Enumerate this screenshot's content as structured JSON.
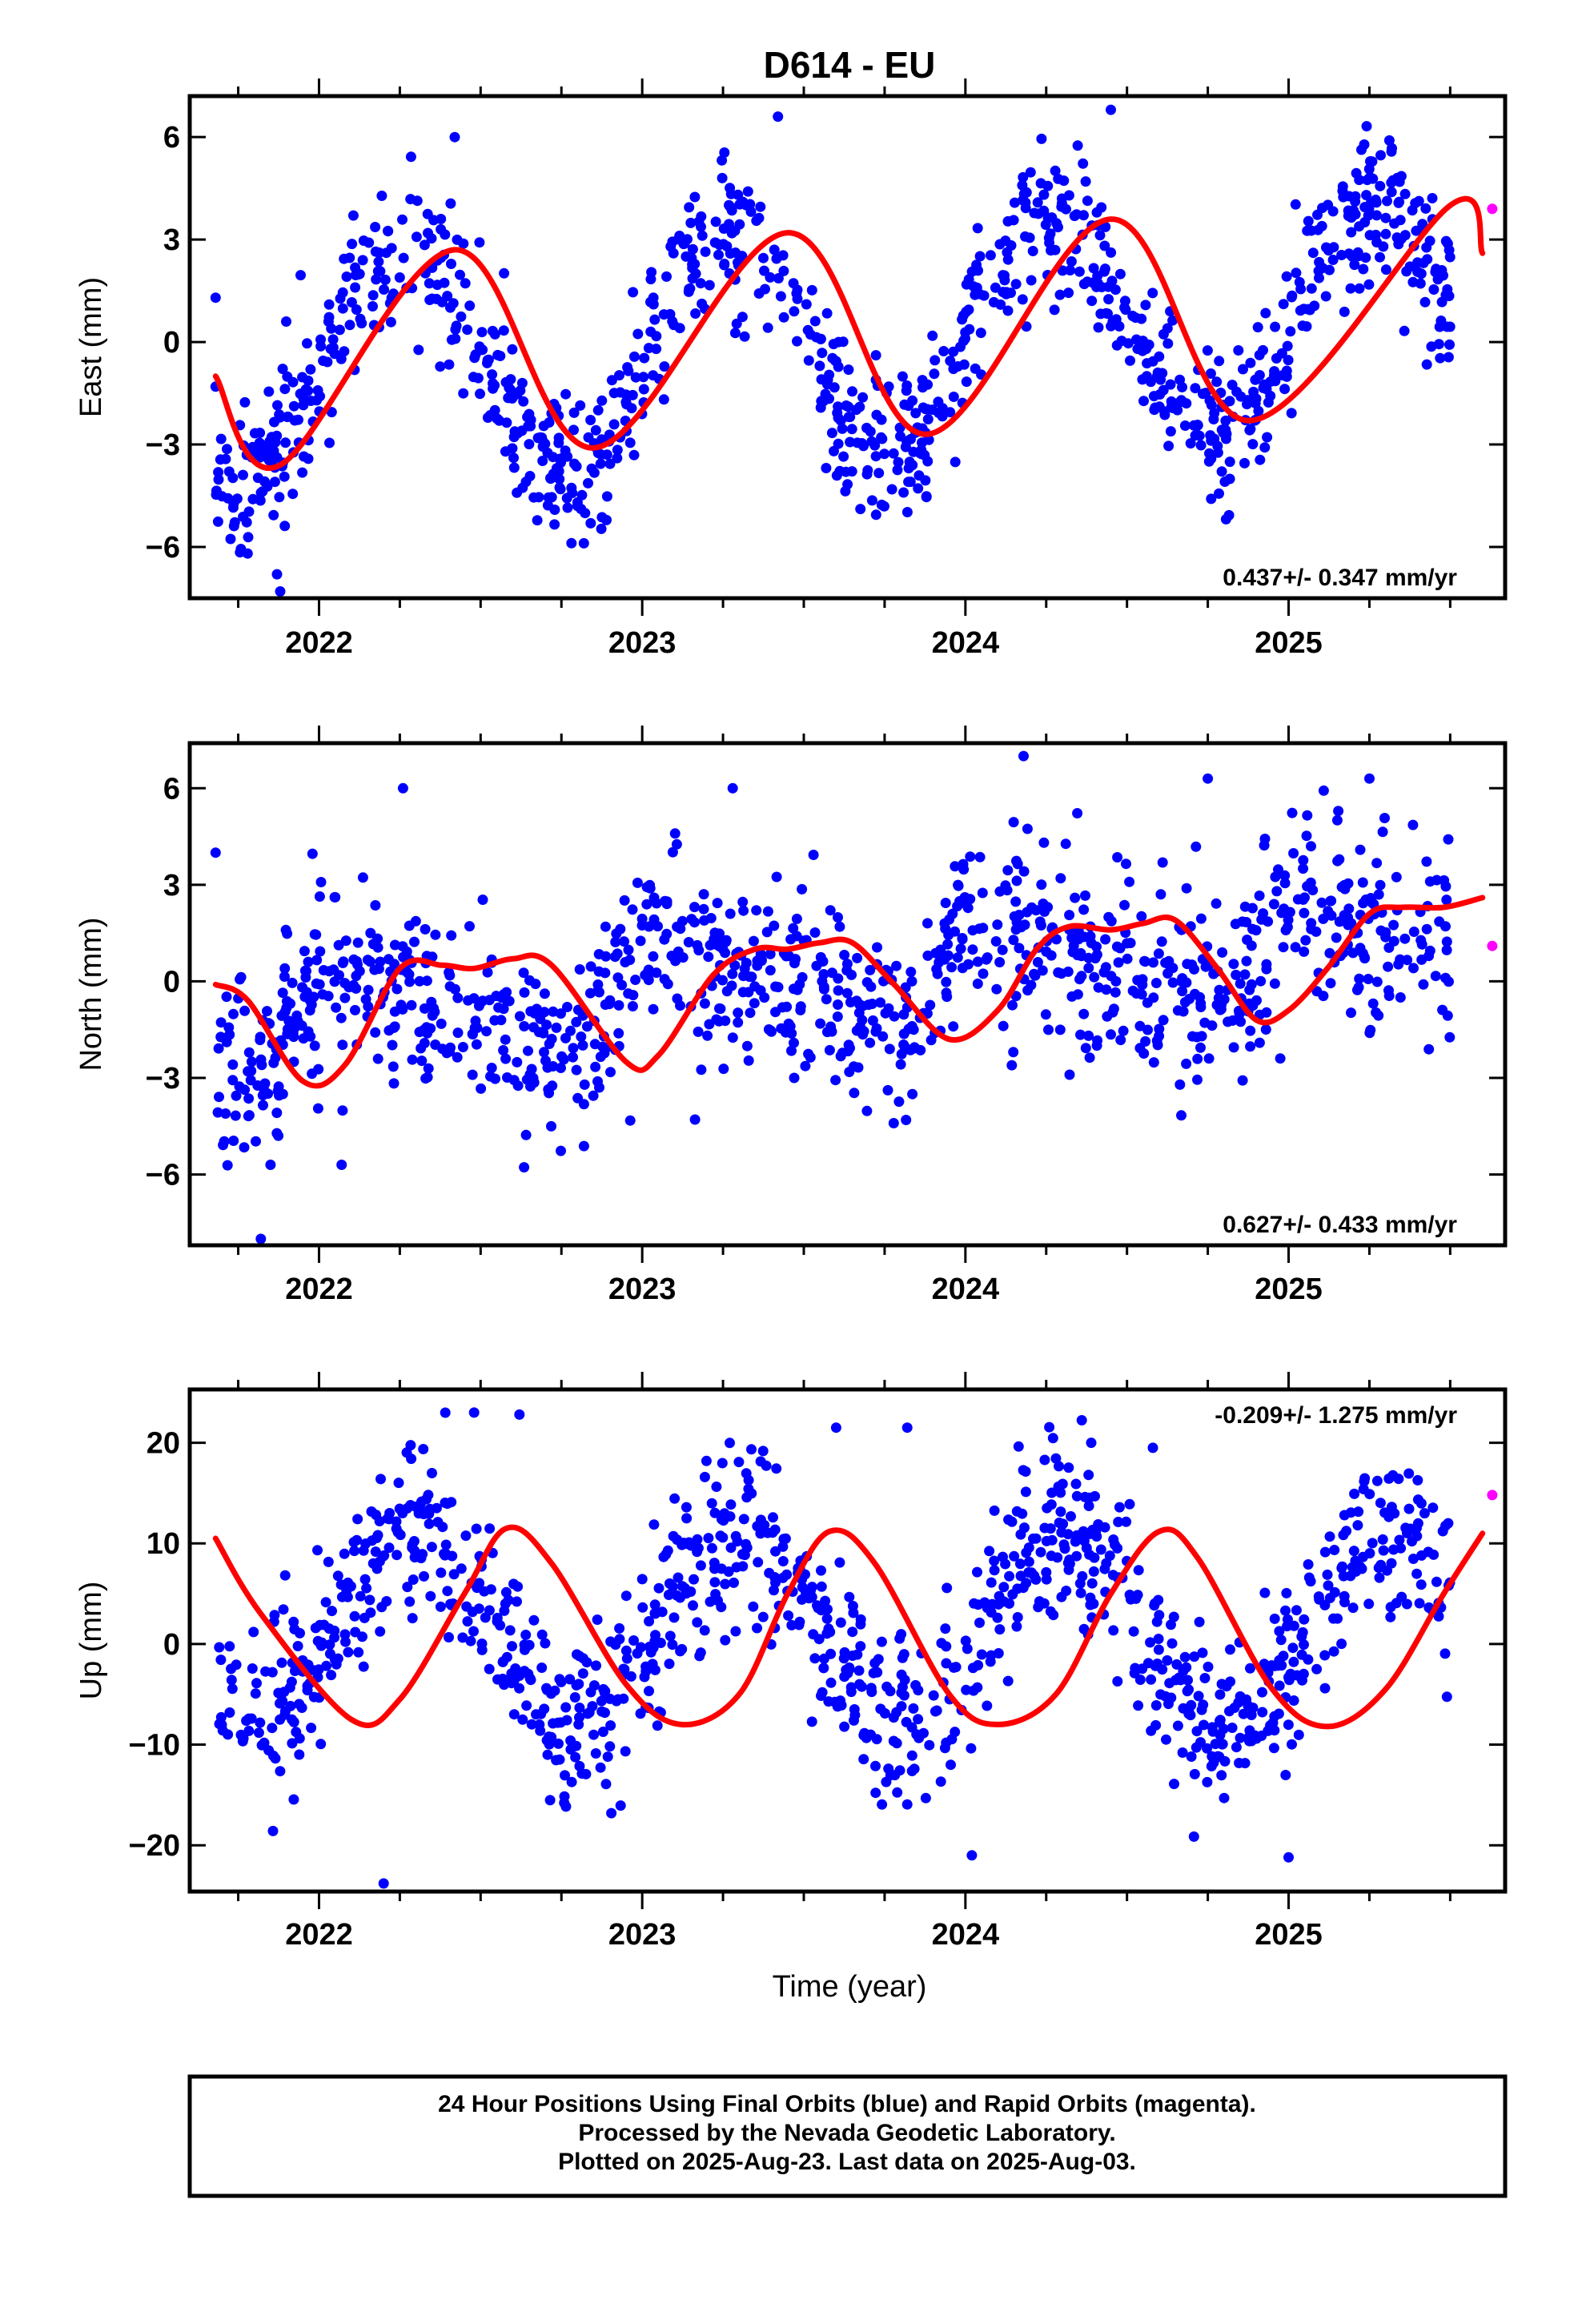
{
  "title": "D614 - EU",
  "xlabel": "Time (year)",
  "footer": {
    "line1": "24 Hour Positions Using Final Orbits (blue) and Rapid Orbits (magenta).",
    "line2": "Processed by the Nevada Geodetic Laboratory.",
    "line3": "Plotted on 2025-Aug-23. Last data on 2025-Aug-03."
  },
  "colors": {
    "final": "#0000ff",
    "rapid": "#ff00ff",
    "model": "#ff0000"
  },
  "chart_data": [
    {
      "type": "scatter",
      "component": "East",
      "ylabel": "East (mm)",
      "rate_label": "0.437+/- 0.347 mm/yr",
      "xlim": [
        2021.6,
        2025.67
      ],
      "ylim": [
        -7.5,
        7.2
      ],
      "yticks": [
        -6,
        -3,
        0,
        3,
        6
      ],
      "xticks": [
        2022,
        2023,
        2024,
        2025
      ],
      "series": [
        {
          "name": "Final Orbits (blue)",
          "seed": 11,
          "t0": 2021.68,
          "t1": 2025.5,
          "n": 1100,
          "mean": 0.05,
          "trend": 0.437,
          "amp": 3.3,
          "phase": -0.1,
          "amp2": 0.0,
          "phase2": 0.0,
          "scatter": 1.15,
          "points": [
            [
              2021.68,
              1.3
            ],
            [
              2021.87,
              -6.8
            ],
            [
              2021.88,
              -7.3
            ],
            [
              2022.42,
              6.0
            ],
            [
              2023.42,
              6.6
            ],
            [
              2024.45,
              6.8
            ]
          ]
        },
        {
          "name": "Rapid Orbits (magenta)",
          "points": [
            [
              2025.63,
              3.9
            ]
          ]
        }
      ],
      "model_knots": [
        [
          2021.68,
          -1.0
        ],
        [
          2021.88,
          -3.6
        ],
        [
          2022.42,
          2.7
        ],
        [
          2022.85,
          -3.1
        ],
        [
          2023.45,
          3.2
        ],
        [
          2023.88,
          -2.7
        ],
        [
          2024.45,
          3.6
        ],
        [
          2024.88,
          -2.3
        ],
        [
          2025.5,
          4.0
        ],
        [
          2025.6,
          2.6
        ]
      ]
    },
    {
      "type": "scatter",
      "component": "North",
      "ylabel": "North (mm)",
      "rate_label": "0.627+/- 0.433 mm/yr",
      "xlim": [
        2021.6,
        2025.67
      ],
      "ylim": [
        -8.2,
        7.4
      ],
      "yticks": [
        -6,
        -3,
        0,
        3,
        6
      ],
      "xticks": [
        2022,
        2023,
        2024,
        2025
      ],
      "series": [
        {
          "name": "Final Orbits (blue)",
          "seed": 23,
          "t0": 2021.68,
          "t1": 2025.5,
          "n": 1100,
          "mean": 0.0,
          "trend": 0.627,
          "amp": 1.2,
          "phase": 0.5,
          "amp2": 0.6,
          "phase2": 1.0,
          "scatter": 1.45,
          "points": [
            [
              2021.68,
              4.0
            ],
            [
              2021.82,
              -8.0
            ],
            [
              2022.26,
              6.0
            ],
            [
              2023.28,
              6.0
            ],
            [
              2024.18,
              7.0
            ],
            [
              2024.75,
              6.3
            ],
            [
              2025.25,
              6.3
            ],
            [
              2021.85,
              -5.7
            ],
            [
              2022.07,
              -5.7
            ]
          ]
        },
        {
          "name": "Rapid Orbits (magenta)",
          "points": [
            [
              2025.63,
              1.1
            ]
          ]
        }
      ],
      "model_knots": [
        [
          2021.68,
          -0.1
        ],
        [
          2021.78,
          -0.6
        ],
        [
          2021.95,
          -3.1
        ],
        [
          2022.08,
          -2.6
        ],
        [
          2022.25,
          0.4
        ],
        [
          2022.38,
          0.5
        ],
        [
          2022.48,
          0.4
        ],
        [
          2022.6,
          0.7
        ],
        [
          2022.72,
          0.5
        ],
        [
          2022.95,
          -2.5
        ],
        [
          2023.05,
          -2.3
        ],
        [
          2023.22,
          0.2
        ],
        [
          2023.35,
          1.0
        ],
        [
          2023.45,
          1.0
        ],
        [
          2023.55,
          1.2
        ],
        [
          2023.65,
          1.2
        ],
        [
          2023.78,
          -0.1
        ],
        [
          2023.95,
          -1.8
        ],
        [
          2024.1,
          -0.9
        ],
        [
          2024.22,
          1.0
        ],
        [
          2024.32,
          1.7
        ],
        [
          2024.45,
          1.6
        ],
        [
          2024.55,
          1.8
        ],
        [
          2024.65,
          1.9
        ],
        [
          2024.78,
          0.4
        ],
        [
          2024.9,
          -1.2
        ],
        [
          2025.0,
          -0.9
        ],
        [
          2025.12,
          0.4
        ],
        [
          2025.25,
          2.1
        ],
        [
          2025.35,
          2.3
        ],
        [
          2025.48,
          2.3
        ],
        [
          2025.6,
          2.6
        ]
      ]
    },
    {
      "type": "scatter",
      "component": "Up",
      "ylabel": "Up (mm)",
      "rate_label": "-0.209+/- 1.275 mm/yr",
      "xlim": [
        2021.6,
        2025.67
      ],
      "ylim": [
        -24.6,
        25.3
      ],
      "yticks": [
        -20,
        -10,
        0,
        10,
        20
      ],
      "xticks": [
        2022,
        2023,
        2024,
        2025
      ],
      "series": [
        {
          "name": "Final Orbits (blue)",
          "seed": 37,
          "t0": 2021.68,
          "t1": 2025.5,
          "n": 1100,
          "mean": 1.5,
          "trend": -0.209,
          "amp": 9.5,
          "phase": -0.35,
          "amp2": 0.0,
          "phase2": 0.0,
          "scatter": 4.3,
          "points": [
            [
              2022.48,
              23.0
            ],
            [
              2022.62,
              22.8
            ],
            [
              2022.2,
              -23.8
            ],
            [
              2023.6,
              21.5
            ],
            [
              2023.82,
              21.5
            ],
            [
              2024.58,
              19.5
            ],
            [
              2025.0,
              -21.2
            ],
            [
              2024.02,
              -21.0
            ]
          ]
        },
        {
          "name": "Rapid Orbits (magenta)",
          "points": [
            [
              2025.63,
              14.8
            ]
          ]
        }
      ],
      "model_knots": [
        [
          2021.68,
          10.5
        ],
        [
          2021.82,
          3.0
        ],
        [
          2022.1,
          -7.5
        ],
        [
          2022.25,
          -5.5
        ],
        [
          2022.45,
          5.0
        ],
        [
          2022.58,
          11.5
        ],
        [
          2022.72,
          8.0
        ],
        [
          2022.95,
          -4.0
        ],
        [
          2023.12,
          -8.0
        ],
        [
          2023.3,
          -5.0
        ],
        [
          2023.45,
          5.0
        ],
        [
          2023.58,
          11.2
        ],
        [
          2023.72,
          8.0
        ],
        [
          2023.95,
          -5.0
        ],
        [
          2024.1,
          -8.0
        ],
        [
          2024.28,
          -5.0
        ],
        [
          2024.45,
          5.0
        ],
        [
          2024.6,
          11.2
        ],
        [
          2024.72,
          8.5
        ],
        [
          2024.95,
          -4.5
        ],
        [
          2025.12,
          -8.2
        ],
        [
          2025.3,
          -4.5
        ],
        [
          2025.48,
          5.0
        ],
        [
          2025.6,
          11.0
        ]
      ]
    }
  ]
}
